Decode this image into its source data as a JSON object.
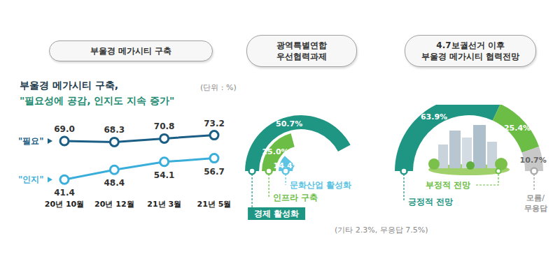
{
  "chart_data": [
    {
      "type": "line",
      "header": "부울경 메가시티 구축",
      "title": "부울경 메가시티 구축,",
      "subtitle": "\"필요성에 공감, 인지도 지속 증가\"",
      "unit": "(단위 : %)",
      "categories": [
        "20년 10월",
        "20년 12월",
        "21년 3월",
        "21년 5월"
      ],
      "series": [
        {
          "name": "\"필요\"",
          "color": "#1b5e85",
          "values": [
            69.0,
            68.3,
            70.8,
            73.2
          ],
          "value_labels": [
            "69.0",
            "68.3",
            "70.8",
            "73.2"
          ]
        },
        {
          "name": "\"인지\"",
          "color": "#3aaedb",
          "values": [
            41.4,
            48.4,
            54.1,
            56.7
          ],
          "value_labels": [
            "41.4",
            "48.4",
            "54.1",
            "56.7"
          ]
        }
      ],
      "ylim": [
        30,
        80
      ],
      "tick_labels": "x",
      "data_labels": true,
      "marker": "circle"
    },
    {
      "type": "radial_bar",
      "header": [
        "광역특별연합",
        "우선협력과제"
      ],
      "categories": [
        "경제 활성화",
        "인프라 구축",
        "문화산업 활성화"
      ],
      "values": [
        50.7,
        25.0,
        14.4
      ],
      "value_labels": [
        "50.7%",
        "25.0%",
        "14.4%"
      ],
      "colors": [
        "#1f9683",
        "#6cbd45",
        "#5cc3e2"
      ],
      "ylim": [
        0,
        60
      ],
      "note": "(기타 2.3%, 무응답 7.5%)",
      "data_labels": true
    },
    {
      "type": "pie",
      "header": [
        "4.7보궐선거 이후",
        "부울경 메가시티 협력전망"
      ],
      "categories": [
        "긍정적 전망",
        "부정적 전망",
        "모름/무응답"
      ],
      "values": [
        63.9,
        25.4,
        10.7
      ],
      "value_labels": [
        "63.9%",
        "25.4%",
        "10.7%"
      ],
      "colors": [
        "#1f9683",
        "#6cbd45",
        "#c8c8c8"
      ],
      "data_labels": true
    }
  ]
}
